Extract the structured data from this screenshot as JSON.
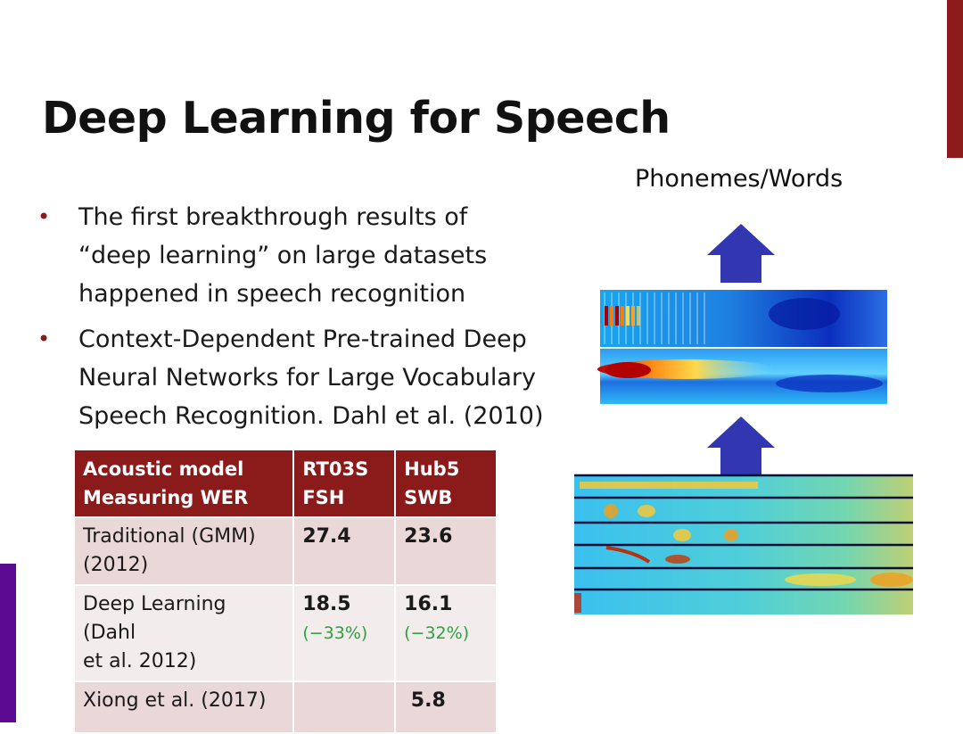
{
  "slide": {
    "title": "Deep Learning for Speech",
    "colors": {
      "accent_red": "#8b1a1a",
      "accent_purple": "#5b0a91",
      "table_header": "#8b1a1a",
      "table_row": "#ead8d8",
      "delta_green": "#2ea043",
      "arrow_blue": "#3236b0"
    }
  },
  "bullets": [
    "The first breakthrough results of\n“deep learning” on large datasets\nhappened in speech recognition",
    "Context-Dependent Pre-trained Deep\nNeural Networks for Large Vocabulary\nSpeech Recognition.  Dahl et al. (2010)"
  ],
  "diagram": {
    "output_label": "Phonemes/Words",
    "arrow_icon": "up-arrow-icon"
  },
  "table": {
    "header": [
      "Acoustic model\nMeasuring WER",
      "RT03S\nFSH",
      "Hub5\nSWB"
    ],
    "rows": [
      {
        "model": "Traditional (GMM)\n(2012)",
        "fsh": "27.4",
        "fsh_delta": "",
        "swb": "23.6",
        "swb_delta": ""
      },
      {
        "model": "Deep Learning (Dahl\net al. 2012)",
        "fsh": "18.5",
        "fsh_delta": "(−33%)",
        "swb": "16.1",
        "swb_delta": "(−32%)"
      },
      {
        "model": "Xiong et al. (2017)",
        "fsh": "",
        "fsh_delta": "",
        "swb": " 5.8",
        "swb_delta": ""
      }
    ]
  }
}
